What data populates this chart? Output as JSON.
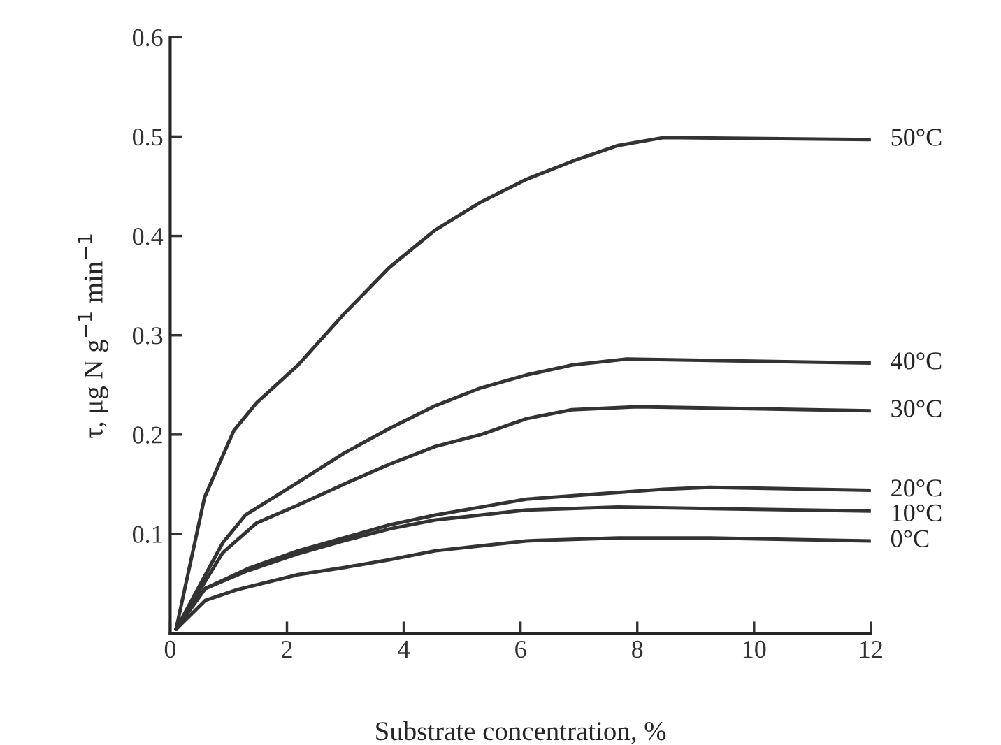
{
  "chart_data": {
    "type": "line",
    "xlabel": "Substrate concentration, %",
    "ylabel": "τ, μg N g$^{−1}$ min$^{−1}$",
    "xlim": [
      0,
      12
    ],
    "ylim": [
      0,
      0.6
    ],
    "xticks": [
      {
        "value": 0,
        "label": "0"
      },
      2,
      4,
      6,
      8,
      10,
      12
    ],
    "yticks": [
      {
        "value": 0,
        "label": null
      },
      0.1,
      0.2,
      0.3,
      0.4,
      0.5,
      0.6
    ],
    "grid": false,
    "marker": "none",
    "line_style": "solid",
    "series": [
      {
        "name": "50°C",
        "color": "#333333",
        "x": [
          0.1,
          0.59,
          1.09,
          1.48,
          2.19,
          2.97,
          3.75,
          4.54,
          5.32,
          6.1,
          6.88,
          7.67,
          8.45,
          12
        ],
        "values": [
          0.004,
          0.137,
          0.204,
          0.232,
          0.27,
          0.321,
          0.368,
          0.406,
          0.434,
          0.457,
          0.475,
          0.491,
          0.499,
          0.497
        ]
      },
      {
        "name": "40°C",
        "color": "#333333",
        "x": [
          0.1,
          0.9,
          1.29,
          2.19,
          2.97,
          3.75,
          4.54,
          5.32,
          6.1,
          6.88,
          7.82,
          12
        ],
        "values": [
          0.004,
          0.091,
          0.119,
          0.152,
          0.181,
          0.206,
          0.229,
          0.247,
          0.26,
          0.27,
          0.276,
          0.272
        ]
      },
      {
        "name": "30°C",
        "color": "#333333",
        "x": [
          0.1,
          0.9,
          1.48,
          2.19,
          2.97,
          3.75,
          4.54,
          5.32,
          6.1,
          6.88,
          8.0,
          12
        ],
        "values": [
          0.004,
          0.081,
          0.111,
          0.129,
          0.15,
          0.17,
          0.188,
          0.2,
          0.216,
          0.225,
          0.228,
          0.224
        ]
      },
      {
        "name": "20°C",
        "color": "#333333",
        "x": [
          0.1,
          0.6,
          1.33,
          2.19,
          2.97,
          3.75,
          4.54,
          5.32,
          6.1,
          7.27,
          8.45,
          9.23,
          12
        ],
        "values": [
          0.004,
          0.045,
          0.065,
          0.083,
          0.096,
          0.109,
          0.119,
          0.127,
          0.135,
          0.14,
          0.145,
          0.147,
          0.144
        ]
      },
      {
        "name": "10°C",
        "color": "#333333",
        "x": [
          0.1,
          0.6,
          1.33,
          2.19,
          2.97,
          3.75,
          4.54,
          5.32,
          6.1,
          7.67,
          12
        ],
        "values": [
          0.004,
          0.045,
          0.063,
          0.08,
          0.093,
          0.105,
          0.114,
          0.119,
          0.124,
          0.127,
          0.123
        ]
      },
      {
        "name": "0°C",
        "color": "#333333",
        "x": [
          0.1,
          0.6,
          1.15,
          2.19,
          2.97,
          3.75,
          4.54,
          5.32,
          6.1,
          7.67,
          9.23,
          12
        ],
        "values": [
          0.004,
          0.033,
          0.044,
          0.059,
          0.066,
          0.074,
          0.083,
          0.088,
          0.093,
          0.096,
          0.096,
          0.093
        ]
      }
    ]
  }
}
